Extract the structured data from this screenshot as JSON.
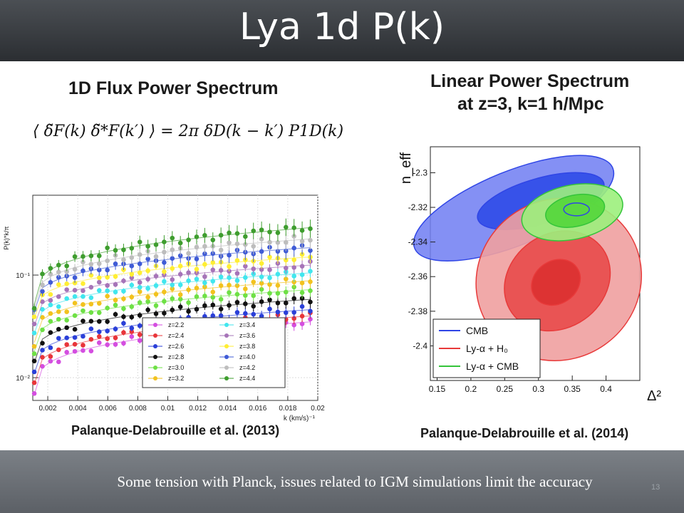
{
  "slide": {
    "title": "Lya 1d P(k)",
    "caption": "Some tension with Planck, issues related to IGM simulations limit the accuracy",
    "slide_number": "13"
  },
  "left_panel": {
    "heading": "1D Flux Power Spectrum",
    "equation": "⟨ δ̃F(k) δ̃*F(k′) ⟩ = 2π δD(k − k′) P1D(k)",
    "citation": "Palanque-Delabrouille et al. (2013)"
  },
  "right_panel": {
    "heading_line1": "Linear Power Spectrum",
    "heading_line2": "at z=3, k=1 h/Mpc",
    "citation": "Palanque-Delabrouille et al. (2014)"
  },
  "chart_data": [
    {
      "type": "scatter",
      "xlabel": "k (km/s)⁻¹",
      "ylabel": "P(k)*k/π",
      "xlim": [
        0.001,
        0.02
      ],
      "ylim": [
        0.006,
        0.6
      ],
      "yscale": "log",
      "xticks": [
        "0.002",
        "0.004",
        "0.006",
        "0.008",
        "0.01",
        "0.012",
        "0.014",
        "0.016",
        "0.018",
        "0.02"
      ],
      "yticks": [
        {
          "value": 0.01,
          "label": "10⁻²"
        },
        {
          "value": 0.1,
          "label": "10⁻¹"
        }
      ],
      "grid": true,
      "legend_position": "bottom-center",
      "series": [
        {
          "name": "z=2.2",
          "color": "#d44ee0",
          "p0": 0.0068,
          "p1": 0.035
        },
        {
          "name": "z=2.4",
          "color": "#e8353a",
          "p0": 0.0086,
          "p1": 0.04
        },
        {
          "name": "z=2.6",
          "color": "#2a3fd8",
          "p0": 0.011,
          "p1": 0.046
        },
        {
          "name": "z=2.8",
          "color": "#111111",
          "p0": 0.014,
          "p1": 0.058
        },
        {
          "name": "z=3.0",
          "color": "#6ee045",
          "p0": 0.018,
          "p1": 0.072
        },
        {
          "name": "z=3.2",
          "color": "#f2c21e",
          "p0": 0.022,
          "p1": 0.088
        },
        {
          "name": "z=3.4",
          "color": "#41e6ee",
          "p0": 0.027,
          "p1": 0.105
        },
        {
          "name": "z=3.6",
          "color": "#a674b8",
          "p0": 0.032,
          "p1": 0.125
        },
        {
          "name": "z=3.8",
          "color": "#ffee33",
          "p0": 0.038,
          "p1": 0.15
        },
        {
          "name": "z=4.0",
          "color": "#3f5bd6",
          "p0": 0.044,
          "p1": 0.185
        },
        {
          "name": "z=4.2",
          "color": "#bdbdbd",
          "p0": 0.048,
          "p1": 0.225
        },
        {
          "name": "z=4.4",
          "color": "#3e9d2e",
          "p0": 0.052,
          "p1": 0.29
        }
      ]
    },
    {
      "type": "contour",
      "xlabel": "Δ²",
      "ylabel": "n_eff",
      "xlim": [
        0.14,
        0.45
      ],
      "ylim": [
        -2.42,
        -2.285
      ],
      "xticks": [
        "0.15",
        "0.2",
        "0.25",
        "0.3",
        "0.35",
        "0.4"
      ],
      "yticks": [
        "-2.3",
        "-2.32",
        "-2.34",
        "-2.36",
        "-2.38",
        "-2.4"
      ],
      "legend_position": "bottom-left",
      "series": [
        {
          "name": "CMB",
          "color": "#2f45e6",
          "center": [
            0.295,
            -2.318
          ]
        },
        {
          "name": "Ly-α + H₀",
          "color": "#e83a3a",
          "center": [
            0.33,
            -2.36
          ]
        },
        {
          "name": "Ly-α + CMB",
          "color": "#34c43a",
          "center": [
            0.35,
            -2.322
          ]
        }
      ]
    }
  ]
}
